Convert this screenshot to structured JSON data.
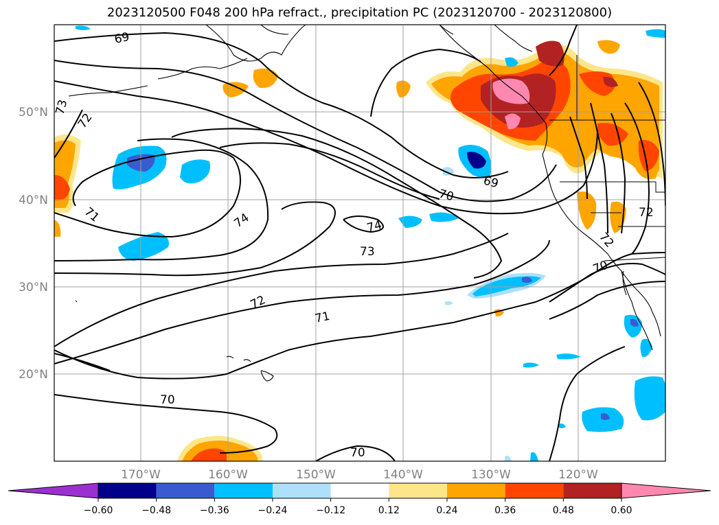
{
  "title": "2023120500 F048 200 hPa refract., precipitation PC (2023120700 - 2023120800)",
  "lat_labels": [
    "50°N",
    "40°N",
    "30°N",
    "20°N"
  ],
  "lon_labels": [
    "170°W",
    "160°W",
    "150°W",
    "140°W",
    "130°W",
    "120°W"
  ],
  "contour_labels": [
    "69",
    "73",
    "72",
    "71",
    "74",
    "74",
    "73",
    "72",
    "71",
    "70",
    "70",
    "69",
    "70",
    "70",
    "72",
    "72"
  ],
  "colorbar": {
    "ticks": [
      "−0.60",
      "−0.48",
      "−0.36",
      "−0.24",
      "−0.12",
      "0.12",
      "0.24",
      "0.36",
      "0.48",
      "0.60"
    ],
    "colors": [
      "#9b30d0",
      "#00008b",
      "#3a5bd0",
      "#00bfff",
      "#aee0fa",
      "#ffffff",
      "#fde68a",
      "#ffa500",
      "#ff4500",
      "#b22222",
      "#ff88b0"
    ]
  }
}
